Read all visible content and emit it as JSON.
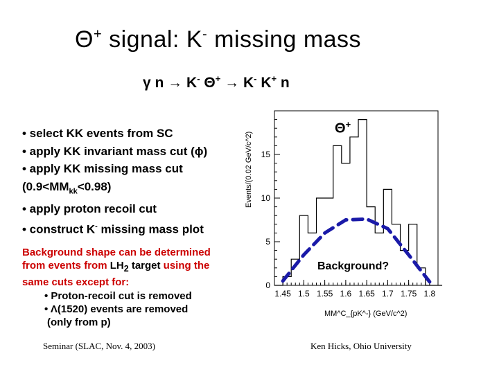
{
  "title": {
    "theta": "Θ",
    "sup": "+",
    "rest": " signal: K",
    "sup2": "-",
    "rest2": " missing mass"
  },
  "subtitle": {
    "gamma": "γ",
    "p1": " n → K",
    "s1": "-",
    "p2": " Θ",
    "s2": "+",
    "p3": " → K",
    "s3": "-",
    "p4": " K",
    "s4": "+",
    "p5": " n"
  },
  "bullets": {
    "b1": "• select KK events from SC",
    "b2": "• apply KK invariant mass cut (ϕ)",
    "b3": "• apply KK missing mass cut",
    "b4a": "(0.9<MM",
    "b4sub": "kk",
    "b4b": "<0.98)",
    "b5": "• apply proton recoil cut",
    "b6a": "• construct K",
    "b6sup": "-",
    "b6b": " missing mass plot"
  },
  "background_note": {
    "l1": "Background shape can be determined",
    "l2a": "from events from ",
    "l2b": "LH",
    "l2sub": "2",
    "l2c": " target",
    "l2d": " using the",
    "l3": "same cuts except for:",
    "l4": "• Proton-recoil cut is removed",
    "l5a": "• Λ",
    "l5b": "(1520) events are removed",
    "l6": "(only from p)"
  },
  "footer": {
    "left": "Seminar (SLAC, Nov. 4, 2003)",
    "right": "Ken Hicks, Ohio University"
  },
  "plot_labels": {
    "peak_theta": "Θ",
    "peak_sup": "+",
    "background": "Background?"
  },
  "chart_data": {
    "type": "bar",
    "title": "",
    "xlabel": "MM^C_{pK^-} (GeV/c^2)",
    "ylabel": "Events/(0.02 GeV/c^2)",
    "xlim": [
      1.43,
      1.82
    ],
    "ylim": [
      0,
      20
    ],
    "x_ticks": [
      "1.45",
      "1.5",
      "1.55",
      "1.6",
      "1.65",
      "1.7",
      "1.75",
      "1.8"
    ],
    "y_ticks": [
      "0",
      "5",
      "10",
      "15"
    ],
    "bin_width": 0.02,
    "bin_edges_start": 1.43,
    "values": [
      0,
      1,
      3,
      8,
      6,
      10,
      10,
      16,
      14,
      17,
      19,
      9,
      6,
      11,
      7,
      4,
      7,
      2,
      0,
      0
    ],
    "background_curve": {
      "x": [
        1.45,
        1.5,
        1.55,
        1.6,
        1.65,
        1.7,
        1.75,
        1.8
      ],
      "y": [
        0.5,
        3.5,
        6,
        7.5,
        7.6,
        6.5,
        3.5,
        0.4
      ],
      "style": "dashed",
      "color": "#1a1aa8"
    }
  }
}
